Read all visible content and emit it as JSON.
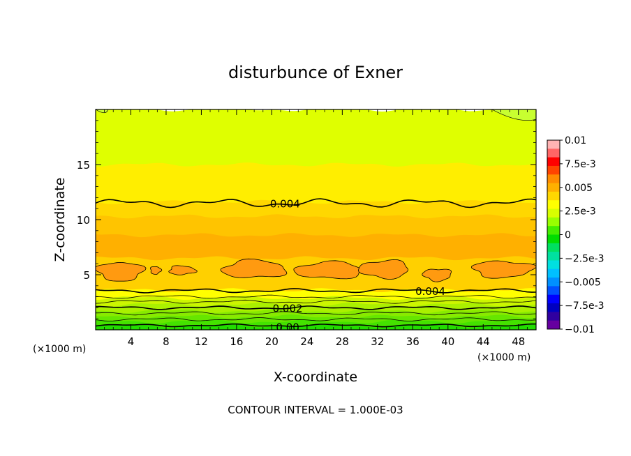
{
  "chart_data": {
    "type": "heatmap",
    "title": "disturbunce of Exner",
    "xlabel": "X-coordinate",
    "ylabel": "Z-coordinate",
    "x_unit": "(×1000 m)",
    "x_unit_right": "(×1000 m)",
    "xlim": [
      0,
      50
    ],
    "ylim": [
      0,
      20
    ],
    "x_ticks": [
      4,
      8,
      12,
      16,
      20,
      24,
      28,
      32,
      36,
      40,
      44,
      48
    ],
    "y_ticks": [
      5,
      10,
      15
    ],
    "footer": "CONTOUR INTERVAL = 1.000E-03",
    "grid": false,
    "legend": "right",
    "colorbar": {
      "range": [
        -0.01,
        0.01
      ],
      "labels": [
        {
          "value": 0.01,
          "text": "0.01"
        },
        {
          "value": 0.0075,
          "text": "7.5e-3"
        },
        {
          "value": 0.005,
          "text": "0.005"
        },
        {
          "value": 0.0025,
          "text": "2.5e-3"
        },
        {
          "value": 0,
          "text": "0"
        },
        {
          "value": -0.0025,
          "text": "−2.5e-3"
        },
        {
          "value": -0.005,
          "text": "−0.005"
        },
        {
          "value": -0.0075,
          "text": "−7.5e-3"
        },
        {
          "value": -0.01,
          "text": "−0.01"
        }
      ],
      "colors": [
        "#ffb3b3",
        "#ff6666",
        "#ff0000",
        "#ff4400",
        "#ff8c00",
        "#ffb000",
        "#ffd700",
        "#ffff00",
        "#d8ff00",
        "#99ff00",
        "#44ee00",
        "#00dd00",
        "#00e060",
        "#00e0a0",
        "#00e0e0",
        "#00c0ff",
        "#0090ff",
        "#0050ff",
        "#0000ff",
        "#0000c0",
        "#3000a0",
        "#6600a0"
      ]
    },
    "bands": [
      {
        "z0": 0.0,
        "z1": 0.35,
        "color": "#22dd00"
      },
      {
        "z0": 0.35,
        "z1": 0.75,
        "color": "#44e200"
      },
      {
        "z0": 0.75,
        "z1": 1.2,
        "color": "#66e600"
      },
      {
        "z0": 1.2,
        "z1": 1.7,
        "color": "#88ea00"
      },
      {
        "z0": 1.7,
        "z1": 2.3,
        "color": "#aaf000"
      },
      {
        "z0": 2.3,
        "z1": 2.9,
        "color": "#ccf600"
      },
      {
        "z0": 2.9,
        "z1": 3.6,
        "color": "#ffff00"
      },
      {
        "z0": 3.6,
        "z1": 6.5,
        "color": "#ffd000"
      },
      {
        "z0": 6.5,
        "z1": 8.6,
        "color": "#ffb000"
      },
      {
        "z0": 8.6,
        "z1": 10.3,
        "color": "#ffc400"
      },
      {
        "z0": 10.3,
        "z1": 11.6,
        "color": "#ffd700"
      },
      {
        "z0": 11.6,
        "z1": 15.0,
        "color": "#ffee00"
      },
      {
        "z0": 15.0,
        "z1": 20.0,
        "color": "#dfff00"
      }
    ],
    "blobs_color": "#ff9a10",
    "blobs": [
      {
        "xc": 2.8,
        "zc": 5.3,
        "rx": 2.6,
        "rz": 0.85
      },
      {
        "xc": 6.8,
        "zc": 5.4,
        "rx": 0.6,
        "rz": 0.35
      },
      {
        "xc": 9.8,
        "zc": 5.4,
        "rx": 1.5,
        "rz": 0.4
      },
      {
        "xc": 18.0,
        "zc": 5.5,
        "rx": 3.6,
        "rz": 0.8
      },
      {
        "xc": 26.5,
        "zc": 5.4,
        "rx": 3.8,
        "rz": 0.75
      },
      {
        "xc": 32.8,
        "zc": 5.5,
        "rx": 2.8,
        "rz": 0.8
      },
      {
        "xc": 38.8,
        "zc": 5.0,
        "rx": 1.6,
        "rz": 0.55
      },
      {
        "xc": 46.2,
        "zc": 5.5,
        "rx": 3.4,
        "rz": 0.75
      }
    ],
    "contour_lines": [
      {
        "z": 11.5,
        "bold": true,
        "wave": 0.25
      },
      {
        "z": 3.55,
        "bold": true,
        "wave": 0.12
      },
      {
        "z": 3.0,
        "bold": false,
        "wave": 0.1
      },
      {
        "z": 2.55,
        "bold": false,
        "wave": 0.1
      },
      {
        "z": 2.0,
        "bold": true,
        "wave": 0.1
      },
      {
        "z": 1.5,
        "bold": false,
        "wave": 0.1
      },
      {
        "z": 0.95,
        "bold": false,
        "wave": 0.1
      },
      {
        "z": 0.4,
        "bold": true,
        "wave": 0.08
      }
    ],
    "contour_labels": [
      {
        "x": 21.5,
        "z": 11.5,
        "text": "0.004"
      },
      {
        "x": 38.0,
        "z": 3.55,
        "text": "0.004"
      },
      {
        "x": 21.8,
        "z": 2.0,
        "text": "0.002"
      },
      {
        "x": 21.8,
        "z": 0.3,
        "text": "0.00"
      }
    ]
  }
}
